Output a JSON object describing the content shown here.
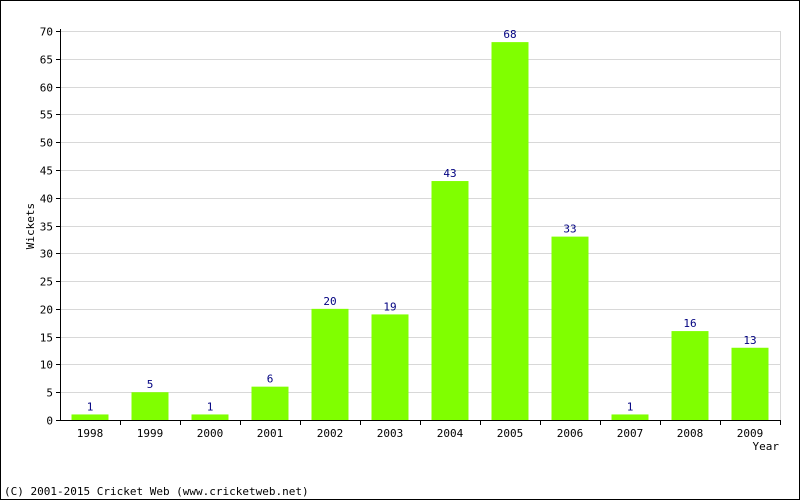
{
  "chart_data": {
    "type": "bar",
    "title": "",
    "xlabel": "Year",
    "ylabel": "Wickets",
    "categories": [
      "1998",
      "1999",
      "2000",
      "2001",
      "2002",
      "2003",
      "2004",
      "2005",
      "2006",
      "2007",
      "2008",
      "2009"
    ],
    "values": [
      1,
      5,
      1,
      6,
      20,
      19,
      43,
      68,
      33,
      1,
      16,
      13
    ],
    "ylim": [
      0,
      70
    ],
    "ytick_step": 5,
    "grid": true,
    "bar_color": "#80ff00",
    "value_label_color": "#000080",
    "grid_color": "#d8d8d8"
  },
  "footer": {
    "copyright": "(C) 2001-2015 Cricket Web (www.cricketweb.net)"
  }
}
